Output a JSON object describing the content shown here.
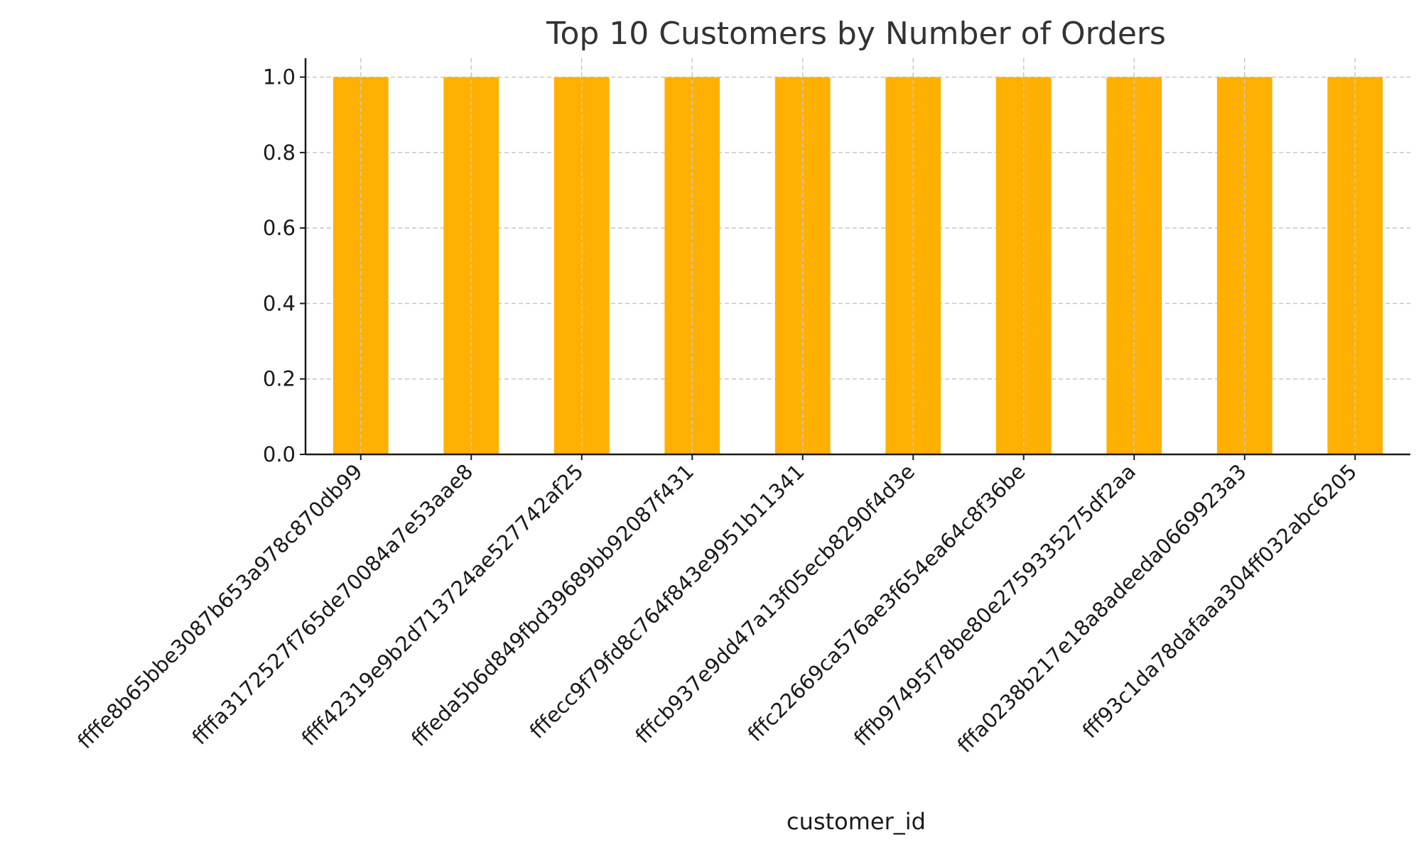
{
  "chart_data": {
    "type": "bar",
    "title": "Top 10 Customers by Number of Orders",
    "xlabel": "customer_id",
    "ylabel": "",
    "categories": [
      "ffffe8b65bbe3087b653a978c870db99",
      "ffffa3172527f765de70084a7e53aae8",
      "ffff42319e9b2d713724ae527742af25",
      "fffeda5b6d849fbd39689bb92087f431",
      "fffecc9f79fd8c764f843e9951b11341",
      "fffcb937e9dd47a13f05ecb8290f4d3e",
      "fffc22669ca576ae3f654ea64c8f36be",
      "fffb97495f78be80e2759335275df2aa",
      "fffa0238b217e18a8adeeda0669923a3",
      "fff93c1da78dafaaa304ff032abc6205"
    ],
    "values": [
      1,
      1,
      1,
      1,
      1,
      1,
      1,
      1,
      1,
      1
    ],
    "ylim": [
      0,
      1.05
    ],
    "yticks": [
      "0.0",
      "0.2",
      "0.4",
      "0.6",
      "0.8",
      "1.0"
    ],
    "grid": true,
    "bar_color": "#FFB000"
  }
}
